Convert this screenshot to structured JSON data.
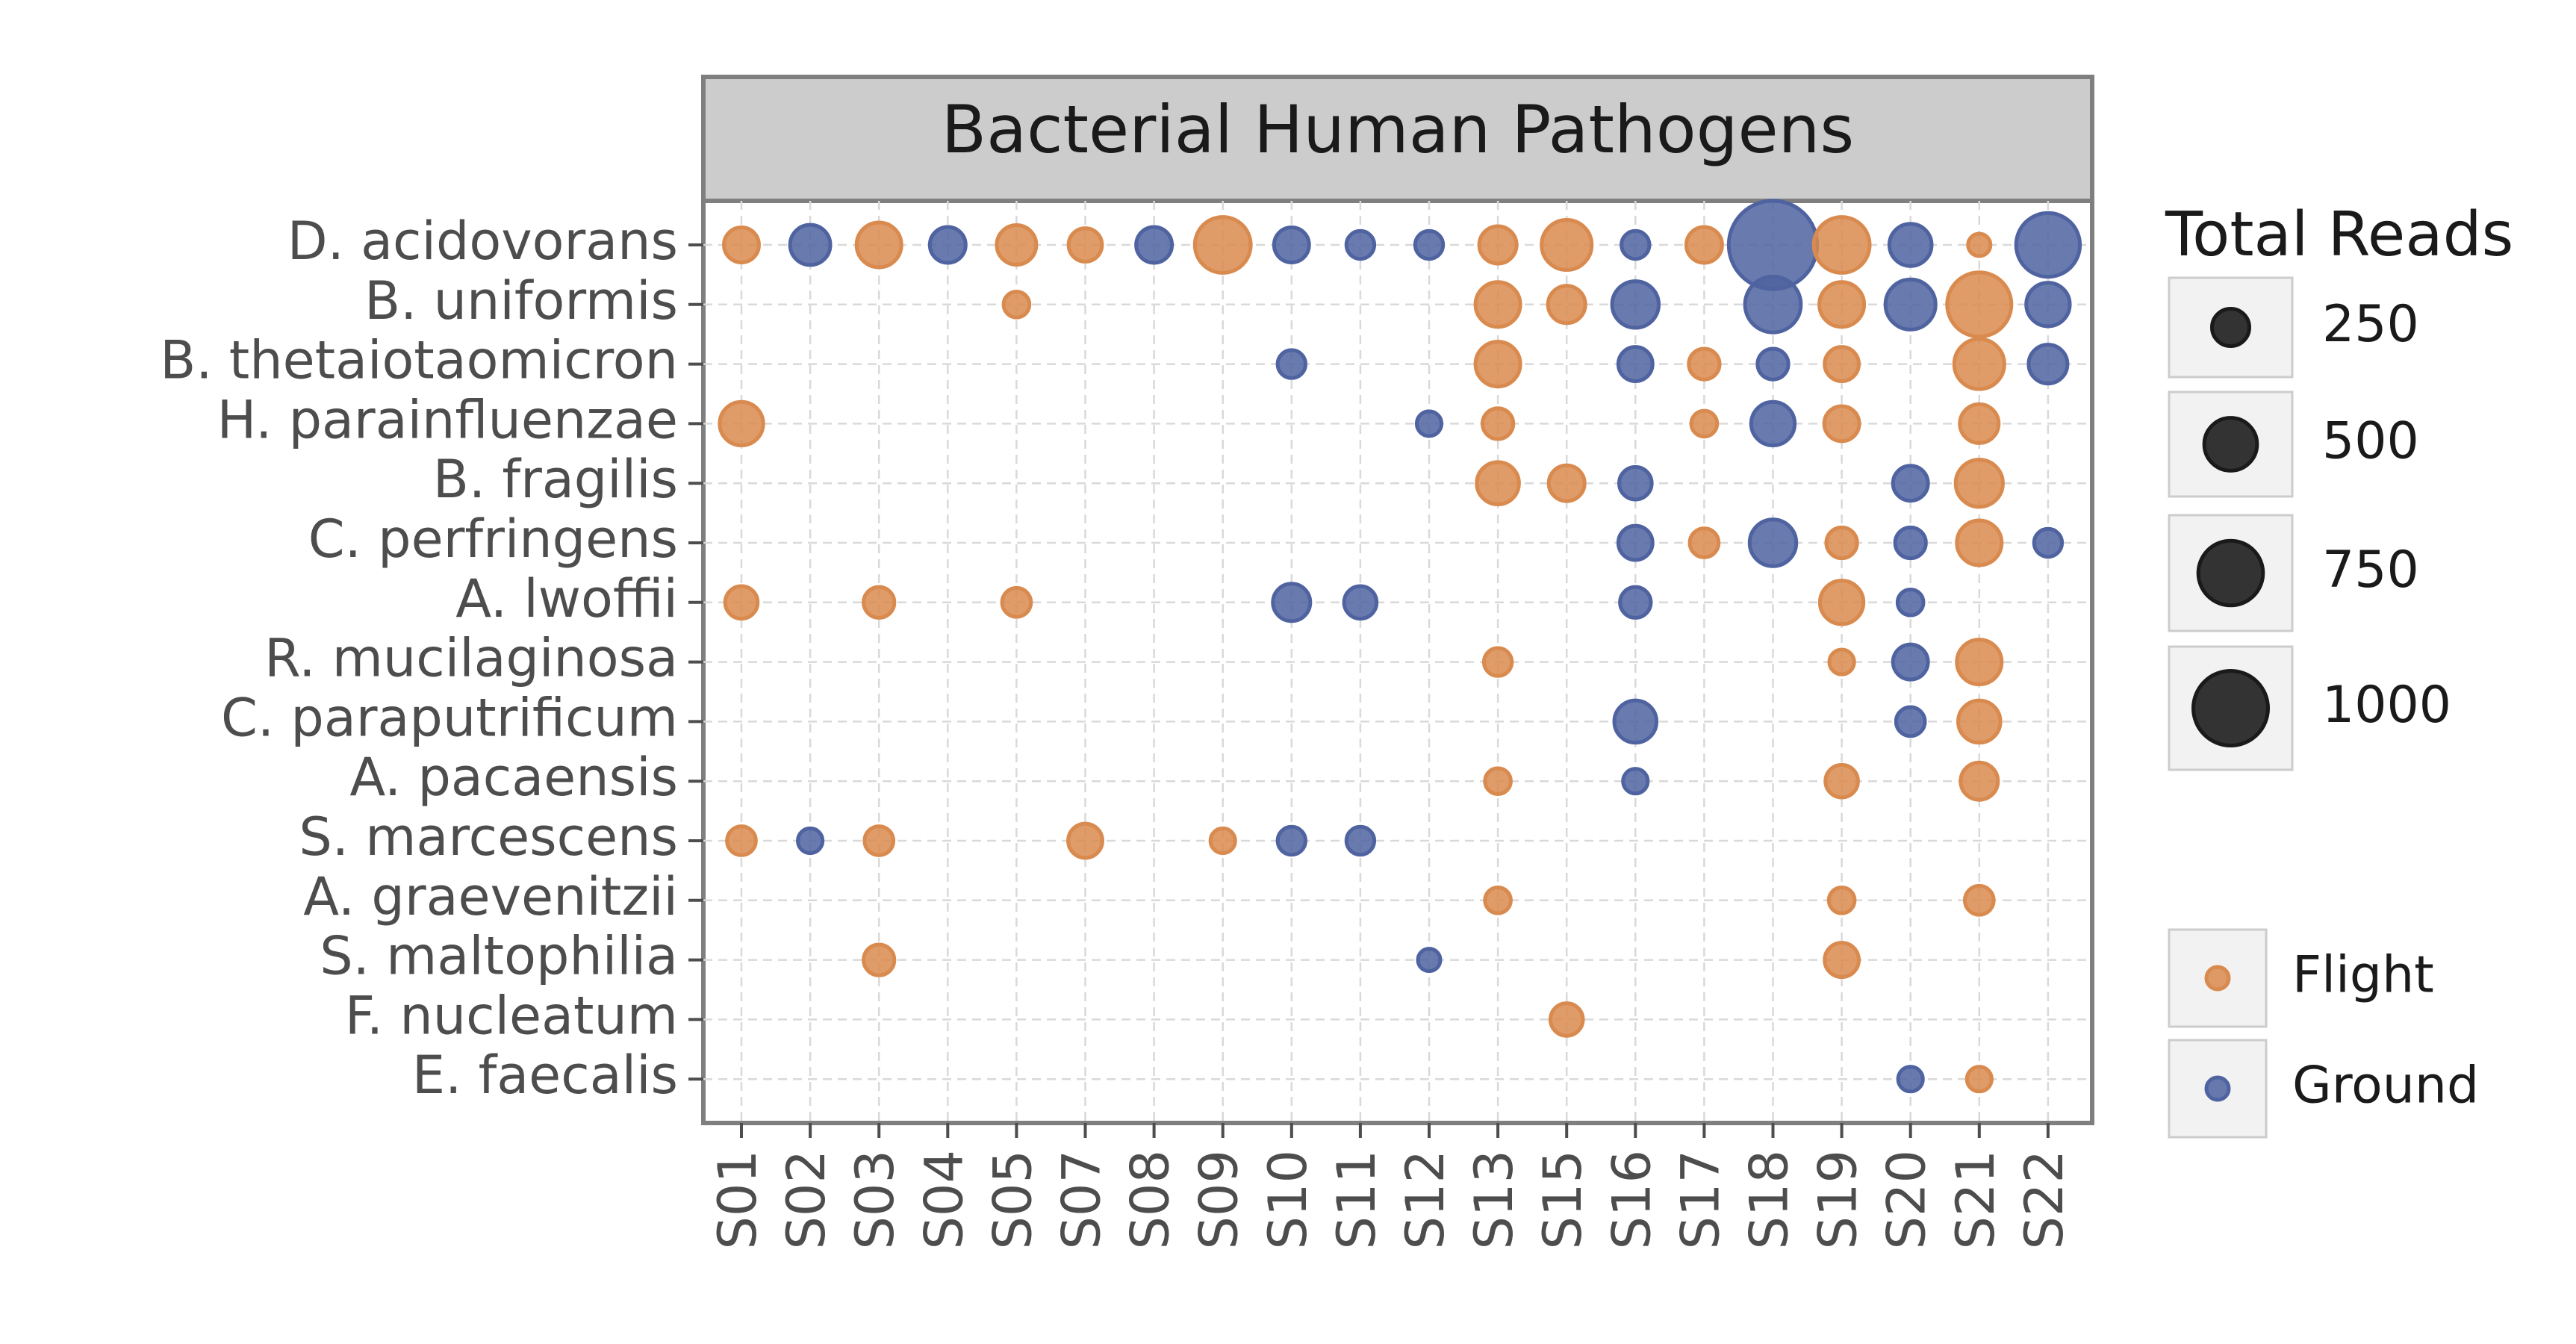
{
  "chart_data": {
    "type": "scatter",
    "title": "Bacterial Human Pathogens",
    "samples": [
      "S01",
      "S02",
      "S03",
      "S04",
      "S05",
      "S07",
      "S08",
      "S09",
      "S10",
      "S11",
      "S12",
      "S13",
      "S15",
      "S16",
      "S17",
      "S18",
      "S19",
      "S20",
      "S21",
      "S22"
    ],
    "species": [
      "D. acidovorans",
      "B. uniformis",
      "B. thetaiotaomicron",
      "H. parainfluenzae",
      "B. fragilis",
      "C. perfringens",
      "A. lwoffii",
      "R. mucilaginosa",
      "C. paraputrificum",
      "A. pacaensis",
      "S. marcescens",
      "A. graevenitzii",
      "S. maltophilia",
      "F. nucleatum",
      "E. faecalis"
    ],
    "size_legend": {
      "title": "Total Reads",
      "breaks": [
        250,
        500,
        750,
        1000
      ]
    },
    "color_legend": [
      {
        "label": "Flight",
        "color": "#d98a4e"
      },
      {
        "label": "Ground",
        "color": "#4f63a0"
      }
    ],
    "points": [
      {
        "species": "D. acidovorans",
        "sample": "S01",
        "group": "Flight",
        "reads": 220
      },
      {
        "species": "D. acidovorans",
        "sample": "S02",
        "group": "Ground",
        "reads": 290
      },
      {
        "species": "D. acidovorans",
        "sample": "S03",
        "group": "Flight",
        "reads": 360
      },
      {
        "species": "D. acidovorans",
        "sample": "S04",
        "group": "Ground",
        "reads": 230
      },
      {
        "species": "D. acidovorans",
        "sample": "S05",
        "group": "Flight",
        "reads": 280
      },
      {
        "species": "D. acidovorans",
        "sample": "S07",
        "group": "Flight",
        "reads": 200
      },
      {
        "species": "D. acidovorans",
        "sample": "S08",
        "group": "Ground",
        "reads": 230
      },
      {
        "species": "D. acidovorans",
        "sample": "S09",
        "group": "Flight",
        "reads": 560
      },
      {
        "species": "D. acidovorans",
        "sample": "S10",
        "group": "Ground",
        "reads": 220
      },
      {
        "species": "D. acidovorans",
        "sample": "S11",
        "group": "Ground",
        "reads": 140
      },
      {
        "species": "D. acidovorans",
        "sample": "S12",
        "group": "Ground",
        "reads": 140
      },
      {
        "species": "D. acidovorans",
        "sample": "S13",
        "group": "Flight",
        "reads": 250
      },
      {
        "species": "D. acidovorans",
        "sample": "S15",
        "group": "Flight",
        "reads": 450
      },
      {
        "species": "D. acidovorans",
        "sample": "S16",
        "group": "Ground",
        "reads": 140
      },
      {
        "species": "D. acidovorans",
        "sample": "S17",
        "group": "Flight",
        "reads": 230
      },
      {
        "species": "D. acidovorans",
        "sample": "S18",
        "group": "Ground",
        "reads": 1400
      },
      {
        "species": "D. acidovorans",
        "sample": "S19",
        "group": "Flight",
        "reads": 560
      },
      {
        "species": "D. acidovorans",
        "sample": "S20",
        "group": "Ground",
        "reads": 320
      },
      {
        "species": "D. acidovorans",
        "sample": "S21",
        "group": "Flight",
        "reads": 90
      },
      {
        "species": "D. acidovorans",
        "sample": "S22",
        "group": "Ground",
        "reads": 730
      },
      {
        "species": "B. uniformis",
        "sample": "S05",
        "group": "Flight",
        "reads": 120
      },
      {
        "species": "B. uniformis",
        "sample": "S13",
        "group": "Flight",
        "reads": 360
      },
      {
        "species": "B. uniformis",
        "sample": "S15",
        "group": "Flight",
        "reads": 250
      },
      {
        "species": "B. uniformis",
        "sample": "S16",
        "group": "Ground",
        "reads": 390
      },
      {
        "species": "B. uniformis",
        "sample": "S18",
        "group": "Ground",
        "reads": 560
      },
      {
        "species": "B. uniformis",
        "sample": "S19",
        "group": "Flight",
        "reads": 360
      },
      {
        "species": "B. uniformis",
        "sample": "S20",
        "group": "Ground",
        "reads": 450
      },
      {
        "species": "B. uniformis",
        "sample": "S21",
        "group": "Flight",
        "reads": 740
      },
      {
        "species": "B. uniformis",
        "sample": "S22",
        "group": "Ground",
        "reads": 340
      },
      {
        "species": "B. thetaiotaomicron",
        "sample": "S10",
        "group": "Ground",
        "reads": 140
      },
      {
        "species": "B. thetaiotaomicron",
        "sample": "S13",
        "group": "Flight",
        "reads": 360
      },
      {
        "species": "B. thetaiotaomicron",
        "sample": "S16",
        "group": "Ground",
        "reads": 210
      },
      {
        "species": "B. thetaiotaomicron",
        "sample": "S17",
        "group": "Flight",
        "reads": 170
      },
      {
        "species": "B. thetaiotaomicron",
        "sample": "S18",
        "group": "Ground",
        "reads": 170
      },
      {
        "species": "B. thetaiotaomicron",
        "sample": "S19",
        "group": "Flight",
        "reads": 210
      },
      {
        "species": "B. thetaiotaomicron",
        "sample": "S21",
        "group": "Flight",
        "reads": 450
      },
      {
        "species": "B. thetaiotaomicron",
        "sample": "S22",
        "group": "Ground",
        "reads": 270
      },
      {
        "species": "H. parainfluenzae",
        "sample": "S01",
        "group": "Flight",
        "reads": 340
      },
      {
        "species": "H. parainfluenzae",
        "sample": "S12",
        "group": "Ground",
        "reads": 110
      },
      {
        "species": "H. parainfluenzae",
        "sample": "S13",
        "group": "Flight",
        "reads": 170
      },
      {
        "species": "H. parainfluenzae",
        "sample": "S17",
        "group": "Flight",
        "reads": 120
      },
      {
        "species": "H. parainfluenzae",
        "sample": "S18",
        "group": "Ground",
        "reads": 340
      },
      {
        "species": "H. parainfluenzae",
        "sample": "S19",
        "group": "Flight",
        "reads": 220
      },
      {
        "species": "H. parainfluenzae",
        "sample": "S21",
        "group": "Flight",
        "reads": 270
      },
      {
        "species": "B. fragilis",
        "sample": "S13",
        "group": "Flight",
        "reads": 320
      },
      {
        "species": "B. fragilis",
        "sample": "S15",
        "group": "Flight",
        "reads": 230
      },
      {
        "species": "B. fragilis",
        "sample": "S16",
        "group": "Ground",
        "reads": 190
      },
      {
        "species": "B. fragilis",
        "sample": "S20",
        "group": "Ground",
        "reads": 220
      },
      {
        "species": "B. fragilis",
        "sample": "S21",
        "group": "Flight",
        "reads": 400
      },
      {
        "species": "C. perfringens",
        "sample": "S16",
        "group": "Ground",
        "reads": 210
      },
      {
        "species": "C. perfringens",
        "sample": "S17",
        "group": "Flight",
        "reads": 150
      },
      {
        "species": "C. perfringens",
        "sample": "S18",
        "group": "Ground",
        "reads": 390
      },
      {
        "species": "C. perfringens",
        "sample": "S19",
        "group": "Flight",
        "reads": 170
      },
      {
        "species": "C. perfringens",
        "sample": "S20",
        "group": "Ground",
        "reads": 170
      },
      {
        "species": "C. perfringens",
        "sample": "S21",
        "group": "Flight",
        "reads": 360
      },
      {
        "species": "C. perfringens",
        "sample": "S22",
        "group": "Ground",
        "reads": 140
      },
      {
        "species": "A. lwoffii",
        "sample": "S01",
        "group": "Flight",
        "reads": 190
      },
      {
        "species": "A. lwoffii",
        "sample": "S03",
        "group": "Flight",
        "reads": 170
      },
      {
        "species": "A. lwoffii",
        "sample": "S05",
        "group": "Flight",
        "reads": 150
      },
      {
        "species": "A. lwoffii",
        "sample": "S10",
        "group": "Ground",
        "reads": 250
      },
      {
        "species": "A. lwoffii",
        "sample": "S11",
        "group": "Ground",
        "reads": 190
      },
      {
        "species": "A. lwoffii",
        "sample": "S16",
        "group": "Ground",
        "reads": 170
      },
      {
        "species": "A. lwoffii",
        "sample": "S19",
        "group": "Flight",
        "reads": 340
      },
      {
        "species": "A. lwoffii",
        "sample": "S20",
        "group": "Ground",
        "reads": 120
      },
      {
        "species": "R. mucilaginosa",
        "sample": "S13",
        "group": "Flight",
        "reads": 140
      },
      {
        "species": "R. mucilaginosa",
        "sample": "S19",
        "group": "Flight",
        "reads": 110
      },
      {
        "species": "R. mucilaginosa",
        "sample": "S20",
        "group": "Ground",
        "reads": 220
      },
      {
        "species": "R. mucilaginosa",
        "sample": "S21",
        "group": "Flight",
        "reads": 360
      },
      {
        "species": "C. paraputrificum",
        "sample": "S16",
        "group": "Ground",
        "reads": 320
      },
      {
        "species": "C. paraputrificum",
        "sample": "S20",
        "group": "Ground",
        "reads": 150
      },
      {
        "species": "C. paraputrificum",
        "sample": "S21",
        "group": "Flight",
        "reads": 320
      },
      {
        "species": "A. pacaensis",
        "sample": "S13",
        "group": "Flight",
        "reads": 120
      },
      {
        "species": "A. pacaensis",
        "sample": "S16",
        "group": "Ground",
        "reads": 110
      },
      {
        "species": "A. pacaensis",
        "sample": "S19",
        "group": "Flight",
        "reads": 190
      },
      {
        "species": "A. pacaensis",
        "sample": "S21",
        "group": "Flight",
        "reads": 250
      },
      {
        "species": "S. marcescens",
        "sample": "S01",
        "group": "Flight",
        "reads": 150
      },
      {
        "species": "S. marcescens",
        "sample": "S02",
        "group": "Ground",
        "reads": 110
      },
      {
        "species": "S. marcescens",
        "sample": "S03",
        "group": "Flight",
        "reads": 150
      },
      {
        "species": "S. marcescens",
        "sample": "S07",
        "group": "Flight",
        "reads": 210
      },
      {
        "species": "S. marcescens",
        "sample": "S09",
        "group": "Flight",
        "reads": 110
      },
      {
        "species": "S. marcescens",
        "sample": "S10",
        "group": "Ground",
        "reads": 140
      },
      {
        "species": "S. marcescens",
        "sample": "S11",
        "group": "Ground",
        "reads": 140
      },
      {
        "species": "A. graevenitzii",
        "sample": "S13",
        "group": "Flight",
        "reads": 120
      },
      {
        "species": "A. graevenitzii",
        "sample": "S19",
        "group": "Flight",
        "reads": 120
      },
      {
        "species": "A. graevenitzii",
        "sample": "S21",
        "group": "Flight",
        "reads": 150
      },
      {
        "species": "S. maltophilia",
        "sample": "S03",
        "group": "Flight",
        "reads": 170
      },
      {
        "species": "S. maltophilia",
        "sample": "S12",
        "group": "Ground",
        "reads": 90
      },
      {
        "species": "S. maltophilia",
        "sample": "S19",
        "group": "Flight",
        "reads": 210
      },
      {
        "species": "F. nucleatum",
        "sample": "S15",
        "group": "Flight",
        "reads": 190
      },
      {
        "species": "E. faecalis",
        "sample": "S20",
        "group": "Ground",
        "reads": 110
      },
      {
        "species": "E. faecalis",
        "sample": "S21",
        "group": "Flight",
        "reads": 110
      }
    ]
  }
}
